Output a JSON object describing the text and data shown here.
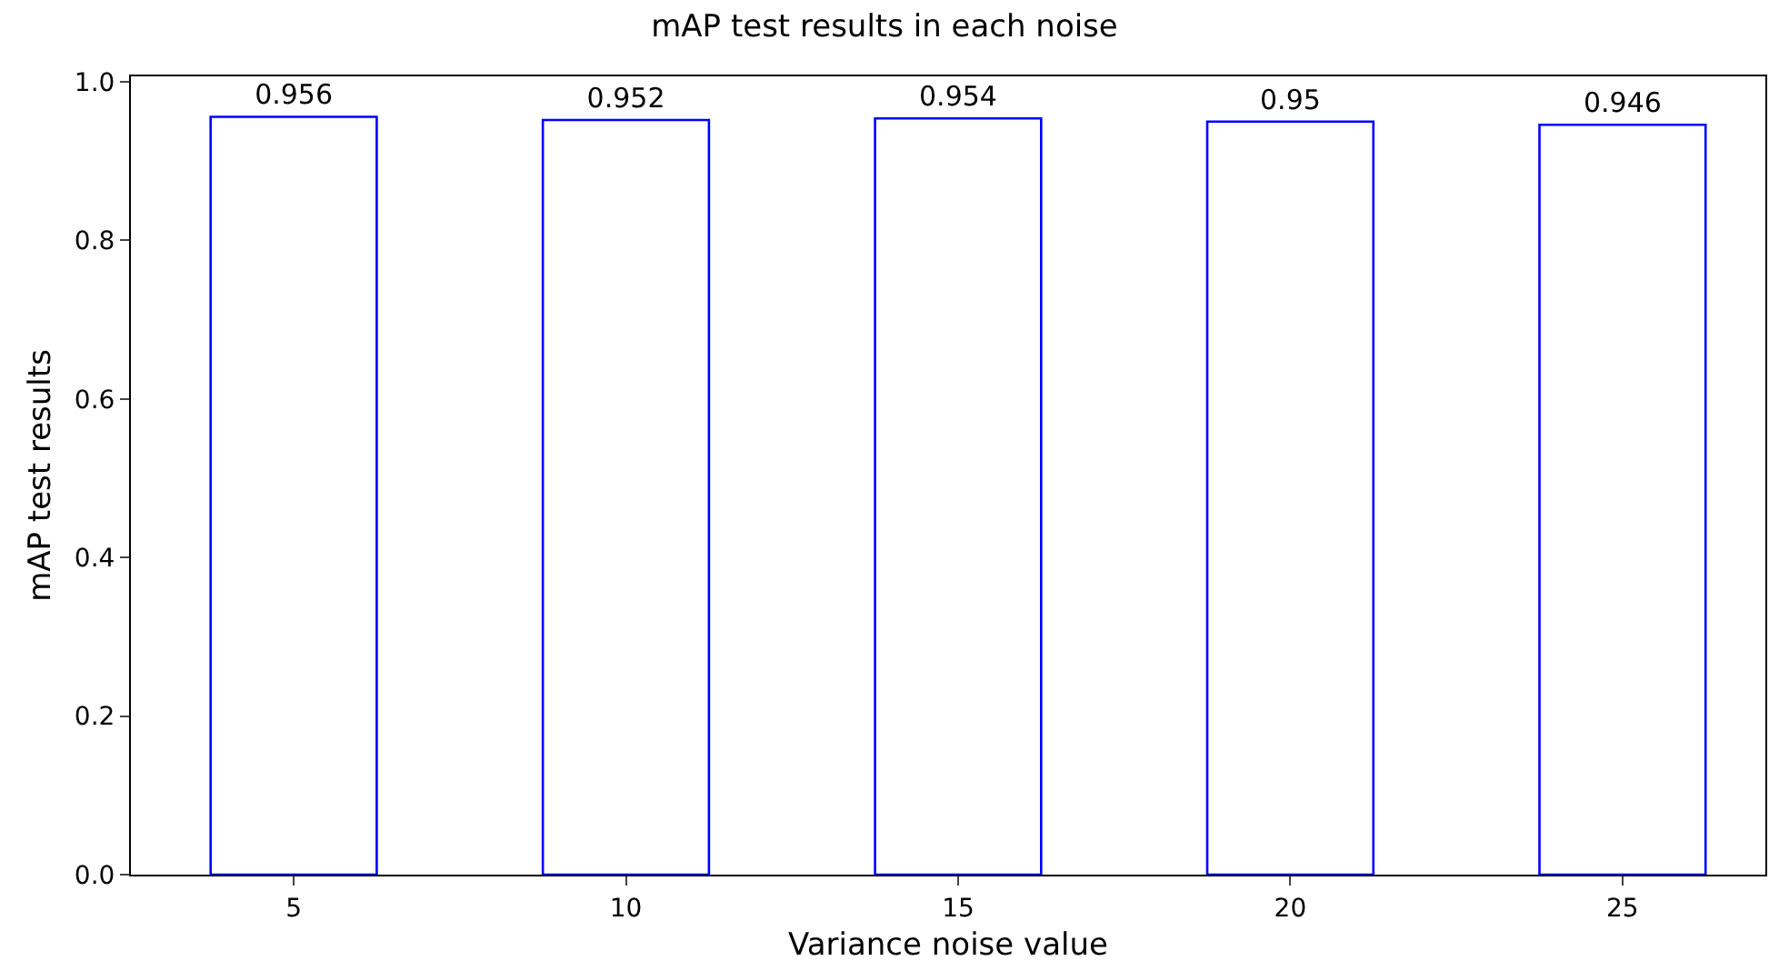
{
  "chart_data": {
    "type": "bar",
    "title": "mAP test results in each noise",
    "xlabel": "Variance noise value",
    "ylabel": "mAP test results",
    "categories": [
      "5",
      "10",
      "15",
      "20",
      "25"
    ],
    "values": [
      0.956,
      0.952,
      0.954,
      0.95,
      0.946
    ],
    "color": "#0000ff",
    "ylim": [
      0,
      1.007
    ],
    "yticks": [
      {
        "value": 0,
        "label": "0.0"
      },
      {
        "value": 0.2,
        "label": "0.2"
      },
      {
        "value": 0.4,
        "label": "0.4"
      },
      {
        "value": 0.6,
        "label": "0.6"
      },
      {
        "value": 0.8,
        "label": "0.8"
      },
      {
        "value": 1.0,
        "label": "1.0"
      }
    ],
    "data_labels": true
  }
}
